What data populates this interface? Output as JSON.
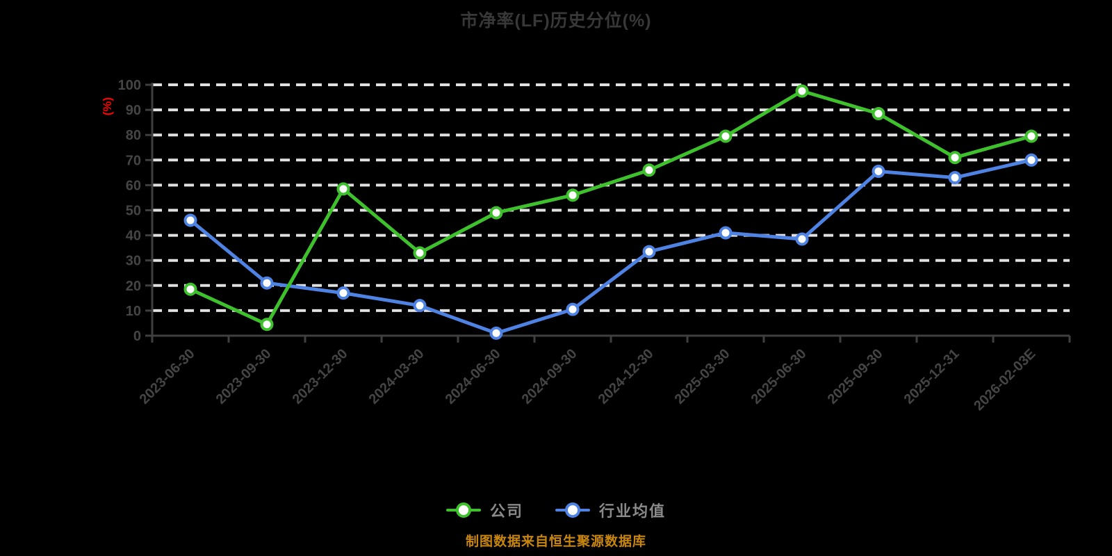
{
  "chart": {
    "background": "#000000"
  },
  "colors": {
    "title_text": "#383838",
    "axis_line": "#3f3f3f",
    "axis_tick_text": "#454545",
    "gridline": "#e0e0e0",
    "y_axis_name_red": "#ff0000",
    "legend_text": "#8a8a8a",
    "source_note_orange": "#c8860d",
    "marker_fill": "#ffffff"
  },
  "chart_data": {
    "type": "line",
    "title": "市净率(LF)历史分位(%)",
    "ylabel": "(%)",
    "xlabel": "",
    "ylim": [
      0,
      100
    ],
    "y_tick_step": 10,
    "grid": "horizontal-dashed-white-on-black",
    "legend_position": "bottom-center",
    "source_note": "制图数据来自恒生聚源数据库",
    "categories": [
      "2023-06-30",
      "2023-09-30",
      "2023-12-30",
      "2024-03-30",
      "2024-06-30",
      "2024-09-30",
      "2024-12-30",
      "2025-03-30",
      "2025-06-30",
      "2025-09-30",
      "2025-12-31",
      "2026-02-03E"
    ],
    "series": [
      {
        "name": "公司",
        "color": "#3ec12c",
        "values": [
          18.5,
          4.5,
          58.5,
          33,
          49,
          56,
          66,
          79.5,
          97.5,
          88.5,
          71,
          79.5
        ]
      },
      {
        "name": "行业均值",
        "color": "#4f83e3",
        "values": [
          46,
          21,
          17,
          12,
          1,
          10.5,
          33.5,
          41,
          38.5,
          65.5,
          63,
          70
        ]
      }
    ]
  }
}
